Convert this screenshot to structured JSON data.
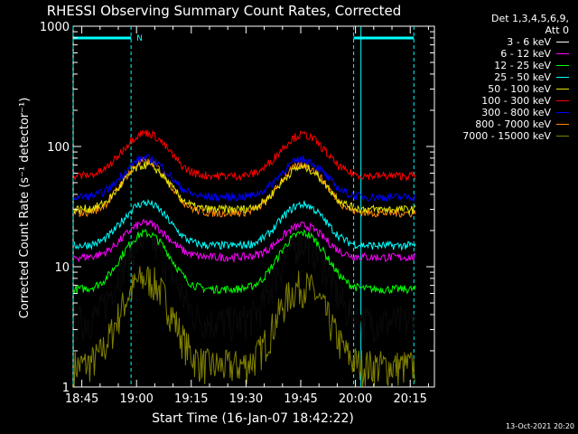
{
  "chart_data": {
    "type": "line",
    "title": "RHESSI Observing Summary Count Rates, Corrected",
    "xlabel": "Start Time (16-Jan-07 18:42:22)",
    "ylabel": "Corrected Count Rate (s⁻¹ detector⁻¹)",
    "ylog": true,
    "ylim": [
      1,
      1000
    ],
    "xlim_minutes": [
      -2.37,
      96.63
    ],
    "x_ticks": [
      "18:45",
      "19:00",
      "19:15",
      "19:30",
      "19:45",
      "20:00",
      "20:15"
    ],
    "x_tick_minutes": [
      0,
      15,
      30,
      45,
      60,
      75,
      90
    ],
    "y_ticks": [
      "1",
      "10",
      "100",
      "1000"
    ],
    "y_tick_values": [
      1,
      10,
      100,
      1000
    ],
    "legend_header": [
      "Det 1,3,4,5,6,9,",
      "Att 0"
    ],
    "legend_placement": "top-right, outside plot",
    "night_marker_label": "N",
    "vertical_markers": [
      {
        "kind": "night",
        "start_minutes": -2.37,
        "end_minutes": 13.5
      },
      {
        "kind": "night",
        "start_minutes": 74.5,
        "end_minutes": 91.0
      }
    ],
    "series": [
      {
        "name": "3 - 6 keV",
        "color": "#000000",
        "base": 3.5,
        "peak1": 17,
        "peak2": 16
      },
      {
        "name": "6 - 12 keV",
        "color": "#ff00ff",
        "base": 12,
        "peak1": 23,
        "peak2": 22
      },
      {
        "name": "12 - 25 keV",
        "color": "#00ff00",
        "base": 6.5,
        "peak1": 19,
        "peak2": 19
      },
      {
        "name": "25 - 50 keV",
        "color": "#00ffff",
        "base": 15,
        "peak1": 34,
        "peak2": 33
      },
      {
        "name": "50 - 100 keV",
        "color": "#e6e600",
        "base": 30,
        "peak1": 70,
        "peak2": 67
      },
      {
        "name": "100 - 300 keV",
        "color": "#ff0000",
        "base": 57,
        "peak1": 130,
        "peak2": 125
      },
      {
        "name": "300 - 800 keV",
        "color": "#0000ff",
        "base": 38,
        "peak1": 80,
        "peak2": 78
      },
      {
        "name": "800 - 7000 keV",
        "color": "#ff8800",
        "base": 28,
        "peak1": 75,
        "peak2": 70
      },
      {
        "name": "7000 - 15000 keV",
        "color": "#808000",
        "base": 1.5,
        "peak1": 8,
        "peak2": 7
      }
    ],
    "peak_minutes": [
      17.5,
      60.5
    ],
    "footer_date": "13-Oct-2021 20:20"
  }
}
